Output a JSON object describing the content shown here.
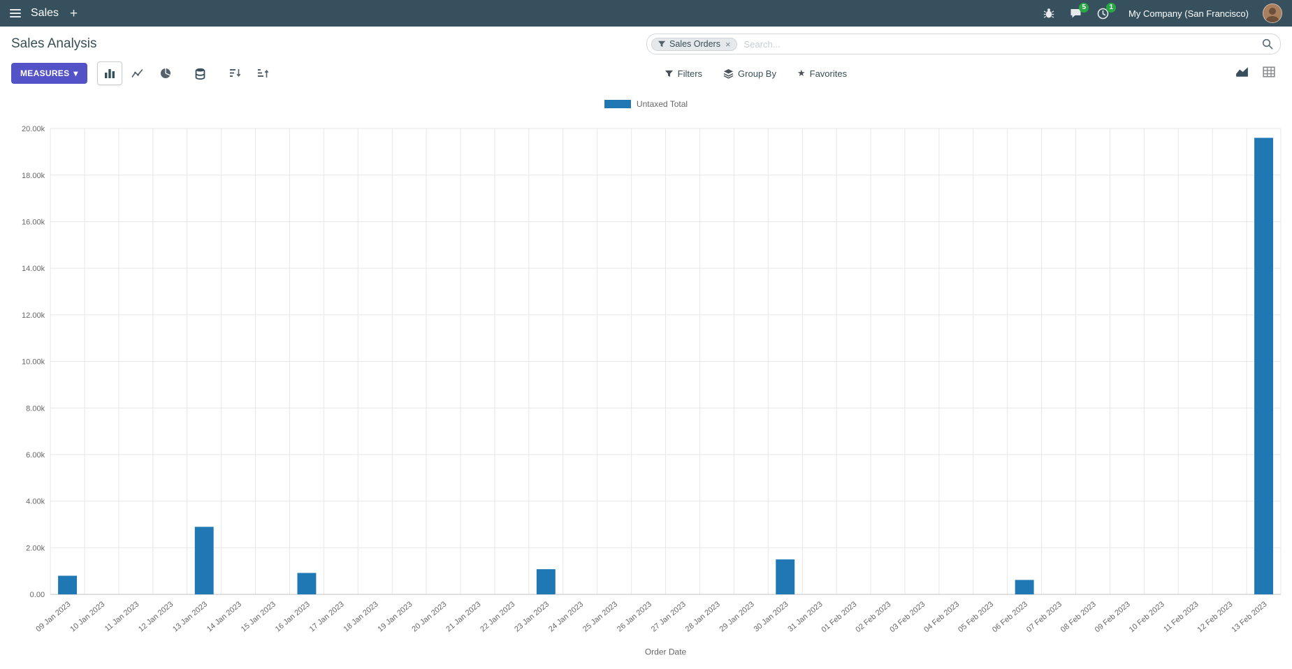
{
  "colors": {
    "navbar": "#36515d",
    "accent": "#5452c7",
    "badge": "#28a745",
    "bar": "#1f77b4"
  },
  "navbar": {
    "app_name": "Sales",
    "plus_label": "+",
    "messages_badge": "5",
    "activities_badge": "1",
    "company": "My Company (San Francisco)"
  },
  "control_panel": {
    "title": "Sales Analysis",
    "search": {
      "facet": "Sales Orders",
      "placeholder": "Search..."
    },
    "measures_label": "MEASURES",
    "filters_label": "Filters",
    "group_by_label": "Group By",
    "favorites_label": "Favorites"
  },
  "chart_data": {
    "type": "bar",
    "title": "",
    "xlabel": "Order Date",
    "ylabel": "",
    "ylim": [
      0,
      20000
    ],
    "ytick_step": 2000,
    "ytick_labels": [
      "0.00",
      "2.00k",
      "4.00k",
      "6.00k",
      "8.00k",
      "10.00k",
      "12.00k",
      "14.00k",
      "16.00k",
      "18.00k",
      "20.00k"
    ],
    "legend_position": "top",
    "grid": true,
    "categories": [
      "09 Jan 2023",
      "10 Jan 2023",
      "11 Jan 2023",
      "12 Jan 2023",
      "13 Jan 2023",
      "14 Jan 2023",
      "15 Jan 2023",
      "16 Jan 2023",
      "17 Jan 2023",
      "18 Jan 2023",
      "19 Jan 2023",
      "20 Jan 2023",
      "21 Jan 2023",
      "22 Jan 2023",
      "23 Jan 2023",
      "24 Jan 2023",
      "25 Jan 2023",
      "26 Jan 2023",
      "27 Jan 2023",
      "28 Jan 2023",
      "29 Jan 2023",
      "30 Jan 2023",
      "31 Jan 2023",
      "01 Feb 2023",
      "02 Feb 2023",
      "03 Feb 2023",
      "04 Feb 2023",
      "05 Feb 2023",
      "06 Feb 2023",
      "07 Feb 2023",
      "08 Feb 2023",
      "09 Feb 2023",
      "10 Feb 2023",
      "11 Feb 2023",
      "12 Feb 2023",
      "13 Feb 2023"
    ],
    "series": [
      {
        "name": "Untaxed Total",
        "color": "#1f77b4",
        "values": [
          800,
          0,
          0,
          0,
          2900,
          0,
          0,
          920,
          0,
          0,
          0,
          0,
          0,
          0,
          1080,
          0,
          0,
          0,
          0,
          0,
          0,
          1500,
          0,
          0,
          0,
          0,
          0,
          0,
          620,
          0,
          0,
          0,
          0,
          0,
          0,
          19600
        ]
      }
    ]
  }
}
